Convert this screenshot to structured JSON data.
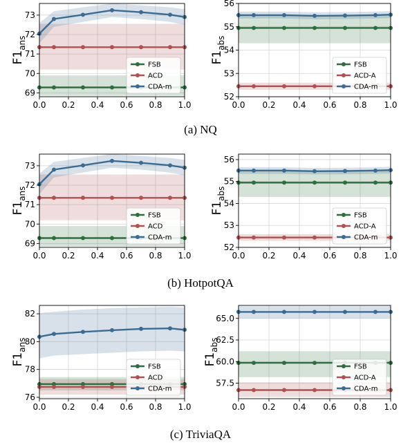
{
  "figure": {
    "captions": [
      "(a) NQ",
      "(b) HotpotQA",
      "(c) TriviaQA"
    ]
  },
  "colors": {
    "FSB": "#2e6e3e",
    "ACD": "#b05050",
    "ACD-A": "#b05050",
    "CDA-m": "#3a6b92"
  },
  "chart_data": [
    {
      "type": "line",
      "panel": "NQ-ans",
      "ylabel_main": "F1",
      "ylabel_sub": "ans",
      "xlim": [
        0.0,
        1.0
      ],
      "ylim": [
        68.8,
        73.6
      ],
      "xticks": [
        "0.0",
        "0.2",
        "0.4",
        "0.6",
        "0.8",
        "1.0"
      ],
      "yticks": [
        69,
        70,
        71,
        72,
        73
      ],
      "ytick_labels": [
        "69",
        "70",
        "71",
        "72",
        "73"
      ],
      "grid": true,
      "legend_position": "bottom-right",
      "series": [
        {
          "name": "FSB",
          "x": [
            0.0,
            0.1,
            0.3,
            0.5,
            0.7,
            0.9,
            1.0
          ],
          "y": [
            69.28,
            69.28,
            69.28,
            69.28,
            69.28,
            69.28,
            69.28
          ],
          "lower": [
            68.85,
            68.85,
            68.85,
            68.85,
            68.85,
            68.85,
            68.85
          ],
          "upper": [
            69.9,
            69.9,
            69.9,
            69.9,
            69.9,
            69.9,
            69.9
          ]
        },
        {
          "name": "ACD",
          "x": [
            0.0,
            0.1,
            0.3,
            0.5,
            0.7,
            0.9,
            1.0
          ],
          "y": [
            71.35,
            71.35,
            71.35,
            71.35,
            71.35,
            71.35,
            71.35
          ],
          "lower": [
            70.2,
            70.2,
            70.2,
            70.2,
            70.2,
            70.2,
            70.2
          ],
          "upper": [
            72.55,
            72.55,
            72.55,
            72.55,
            72.55,
            72.55,
            72.55
          ]
        },
        {
          "name": "CDA-m",
          "x": [
            0.0,
            0.1,
            0.3,
            0.5,
            0.7,
            0.9,
            1.0
          ],
          "y": [
            72.05,
            72.8,
            73.02,
            73.25,
            73.15,
            73.02,
            72.9
          ],
          "lower": [
            71.55,
            72.4,
            72.65,
            72.9,
            72.8,
            72.65,
            72.5
          ],
          "upper": [
            72.6,
            73.2,
            73.4,
            73.6,
            73.5,
            73.4,
            73.3
          ]
        }
      ]
    },
    {
      "type": "line",
      "panel": "NQ-abs",
      "ylabel_main": "F1",
      "ylabel_sub": "abs",
      "xlim": [
        0.0,
        1.0
      ],
      "ylim": [
        52.0,
        56.0
      ],
      "xticks": [
        "0.0",
        "0.2",
        "0.4",
        "0.6",
        "0.8",
        "1.0"
      ],
      "yticks": [
        52,
        53,
        54,
        55,
        56
      ],
      "ytick_labels": [
        "52",
        "53",
        "54",
        "55",
        "56"
      ],
      "grid": true,
      "legend_position": "bottom-right",
      "series": [
        {
          "name": "FSB",
          "x": [
            0.0,
            0.1,
            0.3,
            0.5,
            0.7,
            0.9,
            1.0
          ],
          "y": [
            54.95,
            54.95,
            54.95,
            54.95,
            54.95,
            54.95,
            54.95
          ],
          "lower": [
            54.3,
            54.3,
            54.3,
            54.3,
            54.3,
            54.3,
            54.3
          ],
          "upper": [
            55.5,
            55.5,
            55.5,
            55.5,
            55.5,
            55.5,
            55.5
          ]
        },
        {
          "name": "ACD-A",
          "x": [
            0.0,
            0.1,
            0.3,
            0.5,
            0.7,
            0.9,
            1.0
          ],
          "y": [
            52.45,
            52.45,
            52.45,
            52.45,
            52.45,
            52.45,
            52.45
          ],
          "lower": [
            52.3,
            52.3,
            52.3,
            52.3,
            52.3,
            52.3,
            52.3
          ],
          "upper": [
            52.6,
            52.6,
            52.6,
            52.6,
            52.6,
            52.6,
            52.6
          ]
        },
        {
          "name": "CDA-m",
          "x": [
            0.0,
            0.1,
            0.3,
            0.5,
            0.7,
            0.9,
            1.0
          ],
          "y": [
            55.5,
            55.5,
            55.5,
            55.47,
            55.48,
            55.5,
            55.52
          ],
          "lower": [
            55.35,
            55.35,
            55.35,
            55.32,
            55.33,
            55.35,
            55.37
          ],
          "upper": [
            55.65,
            55.65,
            55.65,
            55.62,
            55.63,
            55.65,
            55.67
          ]
        }
      ]
    },
    {
      "type": "line",
      "panel": "HotpotQA-ans",
      "ylabel_main": "F1",
      "ylabel_sub": "ans",
      "xlim": [
        0.0,
        1.0
      ],
      "ylim": [
        68.8,
        73.6
      ],
      "xticks": [
        "0.0",
        "0.2",
        "0.4",
        "0.6",
        "0.8",
        "1.0"
      ],
      "yticks": [
        69,
        70,
        71,
        72,
        73
      ],
      "ytick_labels": [
        "69",
        "70",
        "71",
        "72",
        "73"
      ],
      "grid": true,
      "legend_position": "bottom-right",
      "series": [
        {
          "name": "FSB",
          "x": [
            0.0,
            0.1,
            0.3,
            0.5,
            0.7,
            0.9,
            1.0
          ],
          "y": [
            69.28,
            69.28,
            69.28,
            69.28,
            69.28,
            69.28,
            69.28
          ],
          "lower": [
            68.85,
            68.85,
            68.85,
            68.85,
            68.85,
            68.85,
            68.85
          ],
          "upper": [
            69.9,
            69.9,
            69.9,
            69.9,
            69.9,
            69.9,
            69.9
          ]
        },
        {
          "name": "ACD",
          "x": [
            0.0,
            0.1,
            0.3,
            0.5,
            0.7,
            0.9,
            1.0
          ],
          "y": [
            71.35,
            71.35,
            71.35,
            71.35,
            71.35,
            71.35,
            71.35
          ],
          "lower": [
            70.2,
            70.2,
            70.2,
            70.2,
            70.2,
            70.2,
            70.2
          ],
          "upper": [
            72.55,
            72.55,
            72.55,
            72.55,
            72.55,
            72.55,
            72.55
          ]
        },
        {
          "name": "CDA-m",
          "x": [
            0.0,
            0.1,
            0.3,
            0.5,
            0.7,
            0.9,
            1.0
          ],
          "y": [
            72.05,
            72.8,
            73.02,
            73.25,
            73.15,
            73.02,
            72.9
          ],
          "lower": [
            71.55,
            72.4,
            72.65,
            72.9,
            72.8,
            72.65,
            72.5
          ],
          "upper": [
            72.6,
            73.2,
            73.4,
            73.6,
            73.5,
            73.4,
            73.3
          ]
        }
      ]
    },
    {
      "type": "line",
      "panel": "HotpotQA-abs",
      "ylabel_main": "F1",
      "ylabel_sub": "abs",
      "xlim": [
        0.0,
        1.0
      ],
      "ylim": [
        52.0,
        56.25
      ],
      "xticks": [
        "0.0",
        "0.2",
        "0.4",
        "0.6",
        "0.8",
        "1.0"
      ],
      "yticks": [
        52,
        53,
        54,
        55,
        56
      ],
      "ytick_labels": [
        "52",
        "53",
        "54",
        "55",
        "56"
      ],
      "grid": true,
      "legend_position": "bottom-right",
      "series": [
        {
          "name": "FSB",
          "x": [
            0.0,
            0.1,
            0.3,
            0.5,
            0.7,
            0.9,
            1.0
          ],
          "y": [
            54.95,
            54.95,
            54.95,
            54.95,
            54.95,
            54.95,
            54.95
          ],
          "lower": [
            54.3,
            54.3,
            54.3,
            54.3,
            54.3,
            54.3,
            54.3
          ],
          "upper": [
            55.5,
            55.5,
            55.5,
            55.5,
            55.5,
            55.5,
            55.5
          ]
        },
        {
          "name": "ACD-A",
          "x": [
            0.0,
            0.1,
            0.3,
            0.5,
            0.7,
            0.9,
            1.0
          ],
          "y": [
            52.45,
            52.45,
            52.45,
            52.45,
            52.45,
            52.45,
            52.45
          ],
          "lower": [
            52.3,
            52.3,
            52.3,
            52.3,
            52.3,
            52.3,
            52.3
          ],
          "upper": [
            52.6,
            52.6,
            52.6,
            52.6,
            52.6,
            52.6,
            52.6
          ]
        },
        {
          "name": "CDA-m",
          "x": [
            0.0,
            0.1,
            0.3,
            0.5,
            0.7,
            0.9,
            1.0
          ],
          "y": [
            55.5,
            55.5,
            55.5,
            55.47,
            55.48,
            55.5,
            55.52
          ],
          "lower": [
            55.35,
            55.35,
            55.35,
            55.32,
            55.33,
            55.35,
            55.37
          ],
          "upper": [
            55.65,
            55.65,
            55.65,
            55.62,
            55.63,
            55.65,
            55.67
          ]
        }
      ]
    },
    {
      "type": "line",
      "panel": "TriviaQA-ans",
      "ylabel_main": "F1",
      "ylabel_sub": "ans",
      "xlim": [
        0.0,
        1.0
      ],
      "ylim": [
        75.9,
        82.6
      ],
      "xticks": [
        "0.0",
        "0.2",
        "0.4",
        "0.6",
        "0.8",
        "1.0"
      ],
      "yticks": [
        76,
        78,
        80,
        82
      ],
      "ytick_labels": [
        "76",
        "78",
        "80",
        "82"
      ],
      "grid": true,
      "legend_position": "bottom-right",
      "series": [
        {
          "name": "FSB",
          "x": [
            0.0,
            0.1,
            0.3,
            0.5,
            0.7,
            0.9,
            1.0
          ],
          "y": [
            76.95,
            76.95,
            76.95,
            76.95,
            76.95,
            76.95,
            76.95
          ],
          "lower": [
            76.5,
            76.5,
            76.5,
            76.5,
            76.5,
            76.5,
            76.5
          ],
          "upper": [
            77.45,
            77.45,
            77.45,
            77.45,
            77.45,
            77.45,
            77.45
          ]
        },
        {
          "name": "ACD",
          "x": [
            0.0,
            0.1,
            0.3,
            0.5,
            0.7,
            0.9,
            1.0
          ],
          "y": [
            76.75,
            76.75,
            76.75,
            76.75,
            76.75,
            76.75,
            76.75
          ],
          "lower": [
            76.2,
            76.2,
            76.2,
            76.2,
            76.2,
            76.2,
            76.2
          ],
          "upper": [
            77.3,
            77.3,
            77.3,
            77.3,
            77.3,
            77.3,
            77.3
          ]
        },
        {
          "name": "CDA-m",
          "x": [
            0.0,
            0.1,
            0.3,
            0.5,
            0.7,
            0.9,
            1.0
          ],
          "y": [
            80.35,
            80.55,
            80.7,
            80.82,
            80.92,
            80.95,
            80.85
          ],
          "lower": [
            78.8,
            79.0,
            79.1,
            79.2,
            79.3,
            79.35,
            79.3
          ],
          "upper": [
            82.05,
            82.15,
            82.3,
            82.4,
            82.45,
            82.5,
            82.45
          ]
        }
      ]
    },
    {
      "type": "line",
      "panel": "TriviaQA-abs",
      "ylabel_main": "F1",
      "ylabel_sub": "abs",
      "xlim": [
        0.0,
        1.0
      ],
      "ylim": [
        55.7,
        66.5
      ],
      "xticks": [
        "0.0",
        "0.2",
        "0.4",
        "0.6",
        "0.8",
        "1.0"
      ],
      "yticks": [
        57.5,
        60.0,
        62.5,
        65.0
      ],
      "ytick_labels": [
        "57.5",
        "60.0",
        "62.5",
        "65.0"
      ],
      "grid": true,
      "legend_position": "bottom-right",
      "series": [
        {
          "name": "FSB",
          "x": [
            0.0,
            0.1,
            0.3,
            0.5,
            0.7,
            0.9,
            1.0
          ],
          "y": [
            59.85,
            59.85,
            59.85,
            59.85,
            59.85,
            59.85,
            59.85
          ],
          "lower": [
            58.2,
            58.2,
            58.2,
            58.2,
            58.2,
            58.2,
            58.2
          ],
          "upper": [
            61.2,
            61.2,
            61.2,
            61.2,
            61.2,
            61.2,
            61.2
          ]
        },
        {
          "name": "ACD-A",
          "x": [
            0.0,
            0.1,
            0.3,
            0.5,
            0.7,
            0.9,
            1.0
          ],
          "y": [
            56.7,
            56.7,
            56.7,
            56.7,
            56.7,
            56.7,
            56.7
          ],
          "lower": [
            55.9,
            55.9,
            55.9,
            55.9,
            55.9,
            55.9,
            55.9
          ],
          "upper": [
            57.6,
            57.6,
            57.6,
            57.6,
            57.6,
            57.6,
            57.6
          ]
        },
        {
          "name": "CDA-m",
          "x": [
            0.0,
            0.1,
            0.3,
            0.5,
            0.7,
            0.9,
            1.0
          ],
          "y": [
            65.75,
            65.75,
            65.75,
            65.75,
            65.75,
            65.75,
            65.75
          ],
          "lower": [
            65.0,
            65.0,
            65.0,
            65.0,
            65.0,
            65.0,
            65.0
          ],
          "upper": [
            66.4,
            66.4,
            66.4,
            66.4,
            66.4,
            66.4,
            66.4
          ]
        }
      ]
    }
  ]
}
